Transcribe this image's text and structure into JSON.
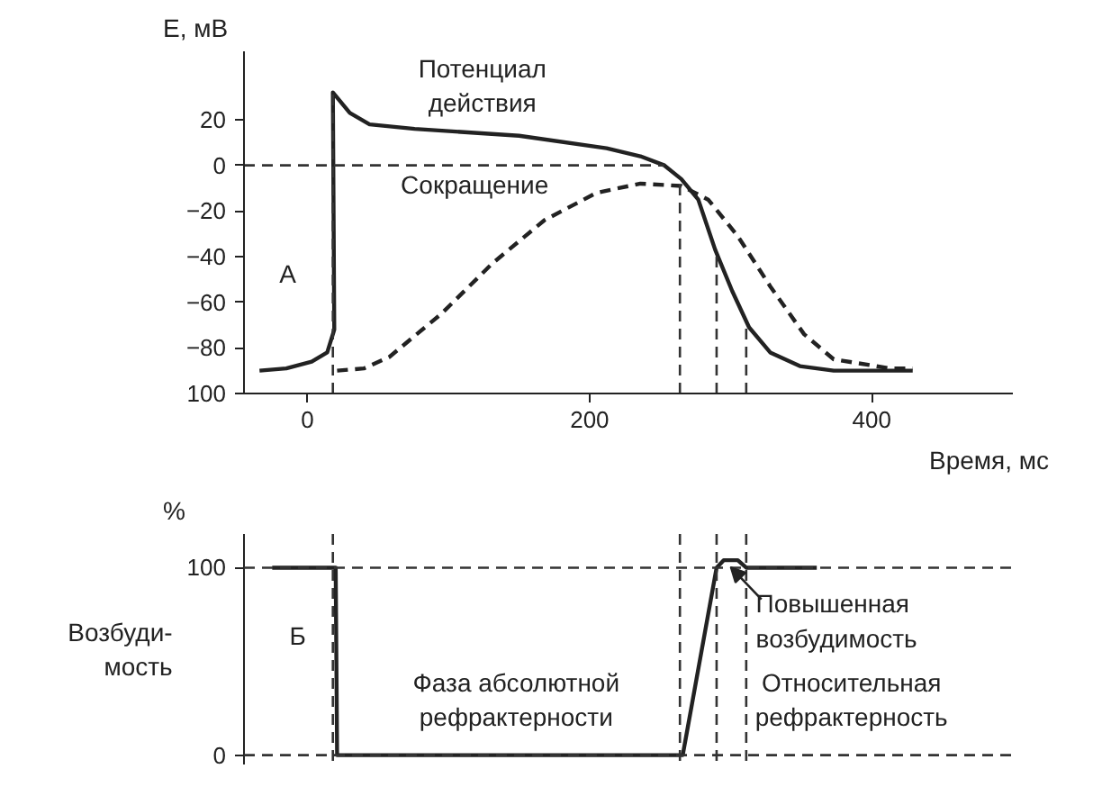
{
  "chart_data": [
    {
      "type": "line",
      "xlabel": "Время, мс",
      "ylabel": "E, мВ",
      "xlim": [
        -45,
        500
      ],
      "ylim": [
        -100,
        50
      ],
      "xticks": [
        0,
        200,
        400
      ],
      "yticks": [
        {
          "value": -100,
          "label": "100"
        },
        -80,
        -60,
        -40,
        -20,
        0,
        20
      ],
      "grid": false,
      "legend": false,
      "series": [
        {
          "name": "Потенциал\nдействия",
          "color": "#222222",
          "line_style": "solid",
          "x": [
            -34,
            -15,
            3,
            14,
            19,
            18,
            30,
            44,
            76,
            150,
            212,
            236,
            253,
            265,
            277,
            289,
            301,
            313,
            328,
            349,
            373,
            429
          ],
          "values": [
            -90,
            -89,
            -86,
            -82,
            -72,
            32,
            23,
            18,
            16,
            13,
            7.5,
            4,
            0,
            -6,
            -15,
            -37,
            -55,
            -71,
            -82,
            -88,
            -90,
            -90
          ]
        },
        {
          "name": "Сокращение",
          "color": "#222222",
          "line_style": "dashed",
          "x": [
            21,
            40,
            58,
            95,
            131,
            168,
            205,
            236,
            265,
            284,
            305,
            328,
            352,
            373,
            413,
            429
          ],
          "values": [
            -90,
            -89,
            -84,
            -65,
            -43,
            -24,
            -12,
            -8,
            -9,
            -15,
            -31,
            -53,
            -74,
            -85,
            -89,
            -89
          ]
        }
      ],
      "ref_lines": [
        {
          "axis": "y",
          "value": 0,
          "line_style": "dashed"
        },
        {
          "axis": "x",
          "value": 18,
          "line_style": "dashed"
        },
        {
          "axis": "x",
          "value": 264,
          "line_style": "dashed"
        },
        {
          "axis": "x",
          "value": 290,
          "line_style": "dashed"
        },
        {
          "axis": "x",
          "value": 311,
          "line_style": "dashed"
        }
      ],
      "annotations": [
        "А"
      ]
    },
    {
      "type": "line",
      "ylabel": "%",
      "xlim": [
        -45,
        500
      ],
      "ylim": [
        -5,
        118
      ],
      "yticks": [
        0,
        100
      ],
      "tick_labels": "y",
      "grid": false,
      "legend": false,
      "series": [
        {
          "color": "#222222",
          "line_style": "solid",
          "x": [
            -25,
            20,
            21,
            266,
            290,
            295,
            305,
            311,
            361
          ],
          "values": [
            100,
            100,
            0,
            0,
            100,
            104,
            104,
            100,
            100
          ]
        }
      ],
      "ref_lines": [
        {
          "axis": "y",
          "value": 100,
          "line_style": "dashed"
        },
        {
          "axis": "y",
          "value": 0,
          "line_style": "dashed"
        },
        {
          "axis": "x",
          "value": 18,
          "line_style": "dashed"
        },
        {
          "axis": "x",
          "value": 264,
          "line_style": "dashed"
        },
        {
          "axis": "x",
          "value": 290,
          "line_style": "dashed"
        },
        {
          "axis": "x",
          "value": 311,
          "line_style": "dashed"
        }
      ],
      "annotations": [
        "Возбуди-\nмость",
        "Б",
        "Фаза абсолютной\nрефрактерности",
        "Относительная\nрефрактерность",
        {
          "text": "Повышенная\nвозбудимость",
          "x": 300,
          "y": 104
        }
      ]
    }
  ]
}
